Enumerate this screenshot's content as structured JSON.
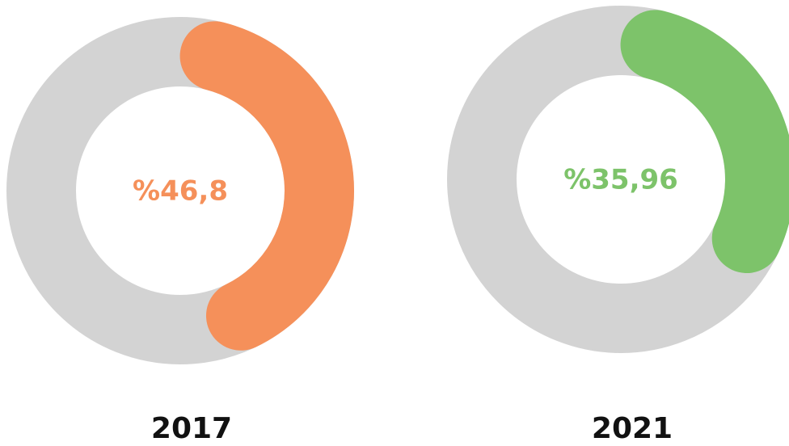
{
  "chart_data": [
    {
      "type": "donut",
      "title": "2017",
      "values": [
        46.8
      ],
      "value_labels": [
        "%46,8"
      ],
      "color": "#f5905a",
      "track_color": "#d3d3d3"
    },
    {
      "type": "donut",
      "title": "2021",
      "values": [
        35.96
      ],
      "value_labels": [
        "%35,96"
      ],
      "color": "#7dc36a",
      "track_color": "#d3d3d3"
    }
  ]
}
